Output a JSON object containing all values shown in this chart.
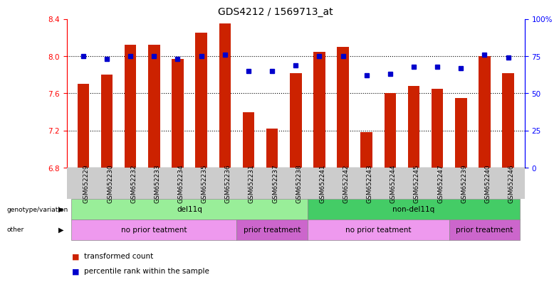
{
  "title": "GDS4212 / 1569713_at",
  "samples": [
    "GSM652229",
    "GSM652230",
    "GSM652232",
    "GSM652233",
    "GSM652234",
    "GSM652235",
    "GSM652236",
    "GSM652231",
    "GSM652237",
    "GSM652238",
    "GSM652241",
    "GSM652242",
    "GSM652243",
    "GSM652244",
    "GSM652245",
    "GSM652247",
    "GSM652239",
    "GSM652240",
    "GSM652246"
  ],
  "bar_values": [
    7.7,
    7.8,
    8.12,
    8.12,
    7.97,
    8.25,
    8.35,
    7.4,
    7.22,
    7.82,
    8.05,
    8.1,
    7.18,
    7.6,
    7.68,
    7.65,
    7.55,
    8.0,
    7.82
  ],
  "dot_values": [
    75,
    73,
    75,
    75,
    73,
    75,
    76,
    65,
    65,
    69,
    75,
    75,
    62,
    63,
    68,
    68,
    67,
    76,
    74
  ],
  "ylim_left": [
    6.8,
    8.4
  ],
  "ylim_right": [
    0,
    100
  ],
  "yticks_left": [
    6.8,
    7.2,
    7.6,
    8.0,
    8.4
  ],
  "yticks_right": [
    0,
    25,
    50,
    75,
    100
  ],
  "ytick_labels_right": [
    "0",
    "25",
    "50",
    "75",
    "100%"
  ],
  "bar_color": "#cc2200",
  "dot_color": "#0000cc",
  "genotype_groups": [
    {
      "label": "del11q",
      "start": 0,
      "end": 10,
      "color": "#99ee99"
    },
    {
      "label": "non-del11q",
      "start": 10,
      "end": 19,
      "color": "#44cc66"
    }
  ],
  "other_groups": [
    {
      "label": "no prior teatment",
      "start": 0,
      "end": 7,
      "color": "#ee99ee"
    },
    {
      "label": "prior treatment",
      "start": 7,
      "end": 10,
      "color": "#cc66cc"
    },
    {
      "label": "no prior teatment",
      "start": 10,
      "end": 16,
      "color": "#ee99ee"
    },
    {
      "label": "prior treatment",
      "start": 16,
      "end": 19,
      "color": "#cc66cc"
    }
  ],
  "legend_items": [
    {
      "label": "transformed count",
      "color": "#cc2200"
    },
    {
      "label": "percentile rank within the sample",
      "color": "#0000cc"
    }
  ],
  "row_labels": [
    "genotype/variation",
    "other"
  ],
  "tick_fontsize": 6.5,
  "title_fontsize": 10,
  "annotation_fontsize": 7.5,
  "legend_fontsize": 7.5
}
